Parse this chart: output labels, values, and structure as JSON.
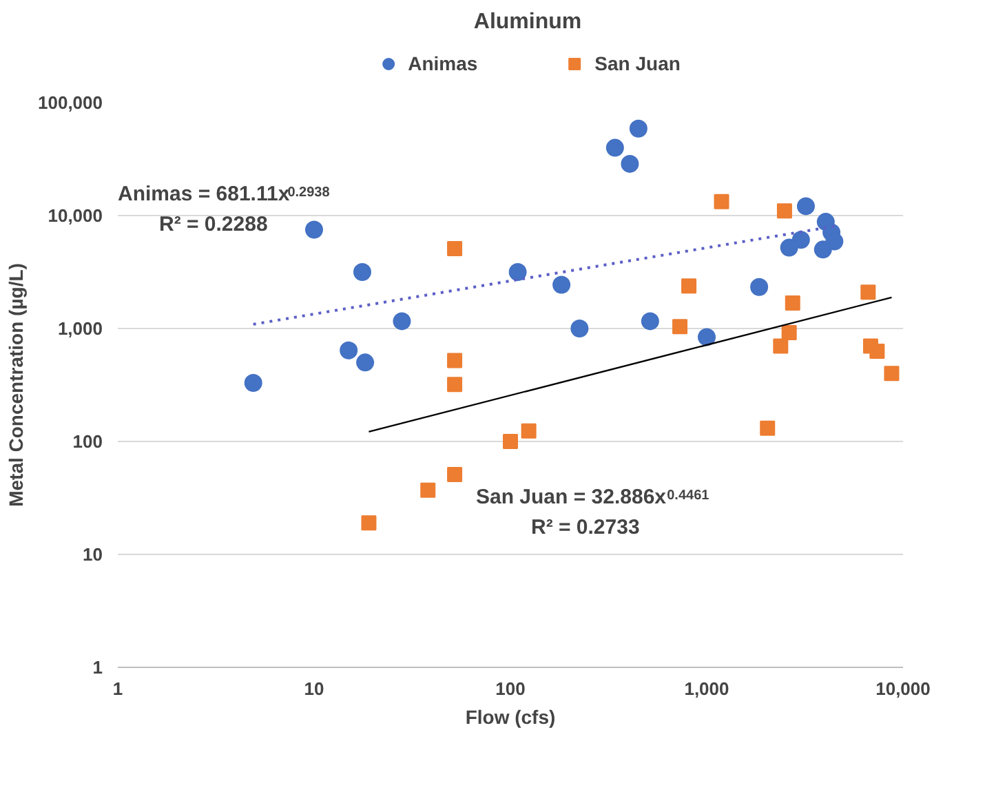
{
  "chart_data": {
    "type": "scatter",
    "title": "Aluminum",
    "xlabel": "Flow (cfs)",
    "ylabel": "Metal Concentration (µg/L)",
    "log": "xy",
    "grid": "y",
    "legend": "top",
    "xlim": [
      1,
      10000
    ],
    "ylim": [
      1,
      100000
    ],
    "xticks": [
      1,
      10,
      100,
      {
        "value": 1000,
        "label": "1,000"
      },
      {
        "value": 10000,
        "label": "10,000"
      }
    ],
    "yticks": [
      1,
      10,
      100,
      {
        "value": 1000,
        "label": "1,000"
      },
      {
        "value": 10000,
        "label": "10,000"
      },
      {
        "value": 100000,
        "label": "100,000"
      }
    ],
    "series": [
      {
        "name": "Animas",
        "color": "#4472c4",
        "marker": "circle",
        "x": [
          4.9,
          10,
          17.6,
          28,
          15,
          18.2,
          449,
          341,
          406,
          3200,
          4040,
          4320,
          3020,
          2630,
          4470,
          3910,
          109,
          182,
          225,
          515,
          1000,
          1850
        ],
        "values": [
          330,
          7500,
          3160,
          1160,
          640,
          500,
          58900,
          39800,
          28700,
          12100,
          8800,
          7100,
          6100,
          5200,
          5900,
          5000,
          3160,
          2440,
          1000,
          1160,
          840,
          2330
        ]
      },
      {
        "name": "San Juan",
        "color": "#ed7d31",
        "marker": "square",
        "x": [
          52,
          52,
          52,
          100,
          124,
          52,
          38,
          19,
          2040,
          8750,
          1190,
          2490,
          811,
          730,
          2740,
          2630,
          2380,
          6640,
          6840,
          7380
        ],
        "values": [
          5100,
          520,
          320,
          100,
          124,
          51,
          37,
          19,
          131,
          400,
          13300,
          11000,
          2380,
          1040,
          1680,
          920,
          700,
          2100,
          700,
          630
        ]
      },
      {
        "type": "line",
        "color": "#5b5fc7",
        "marker": "none",
        "line_style": "dotted",
        "x": [
          4.9,
          4500
        ],
        "values": [
          1090,
          8060
        ]
      },
      {
        "type": "line",
        "color": "#000000",
        "marker": "none",
        "line_style": "solid",
        "x": [
          19,
          8750
        ],
        "values": [
          122,
          1885
        ]
      }
    ],
    "annotations": [
      "Animas = 681.11x$^{0.2938}$",
      "R² = 0.2288",
      "San Juan = 32.886x$^{0.4461}$",
      "R² = 0.2733"
    ]
  }
}
